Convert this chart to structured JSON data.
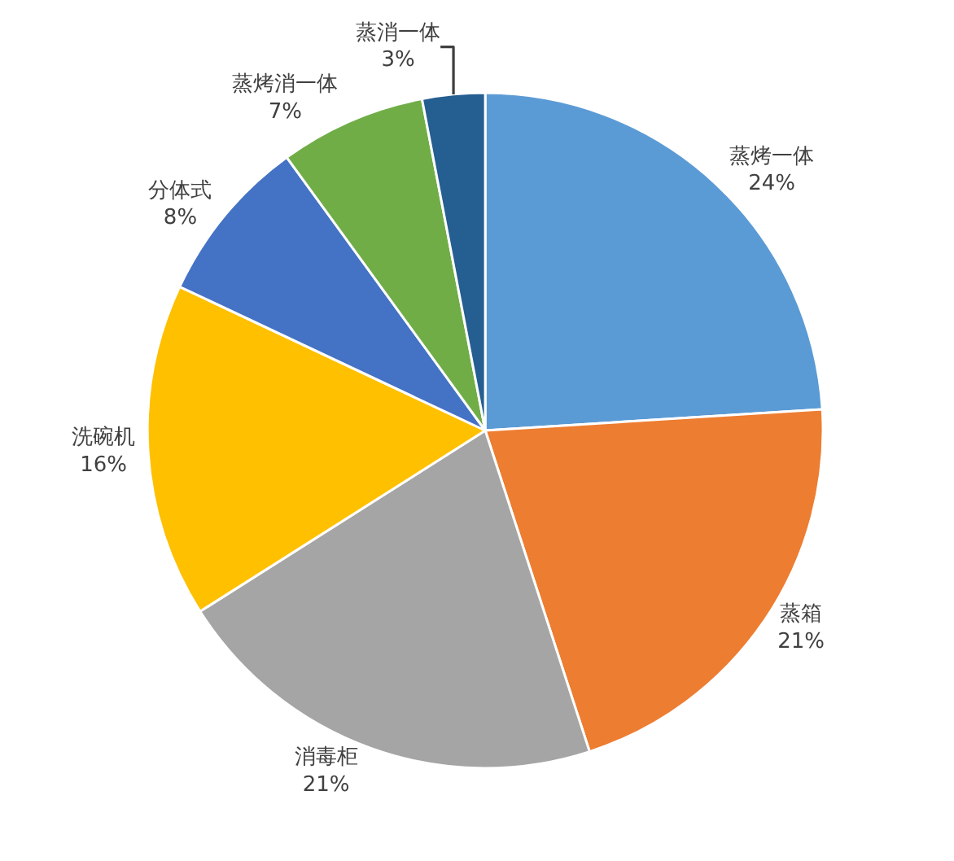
{
  "chart_data": {
    "type": "pie",
    "categories": [
      "蒸烤一体",
      "蒸箱",
      "消毒柜",
      "洗碗机",
      "分体式",
      "蒸烤消一体",
      "蒸消一体"
    ],
    "values": [
      24,
      21,
      21,
      16,
      8,
      7,
      3
    ],
    "colors": [
      "#5b9bd5",
      "#ed7d31",
      "#a5a5a5",
      "#ffc000",
      "#4472c4",
      "#70ad47",
      "#255e91"
    ],
    "value_labels": [
      "24%",
      "21%",
      "21%",
      "16%",
      "8%",
      "7%",
      "3%"
    ],
    "legend": false
  }
}
